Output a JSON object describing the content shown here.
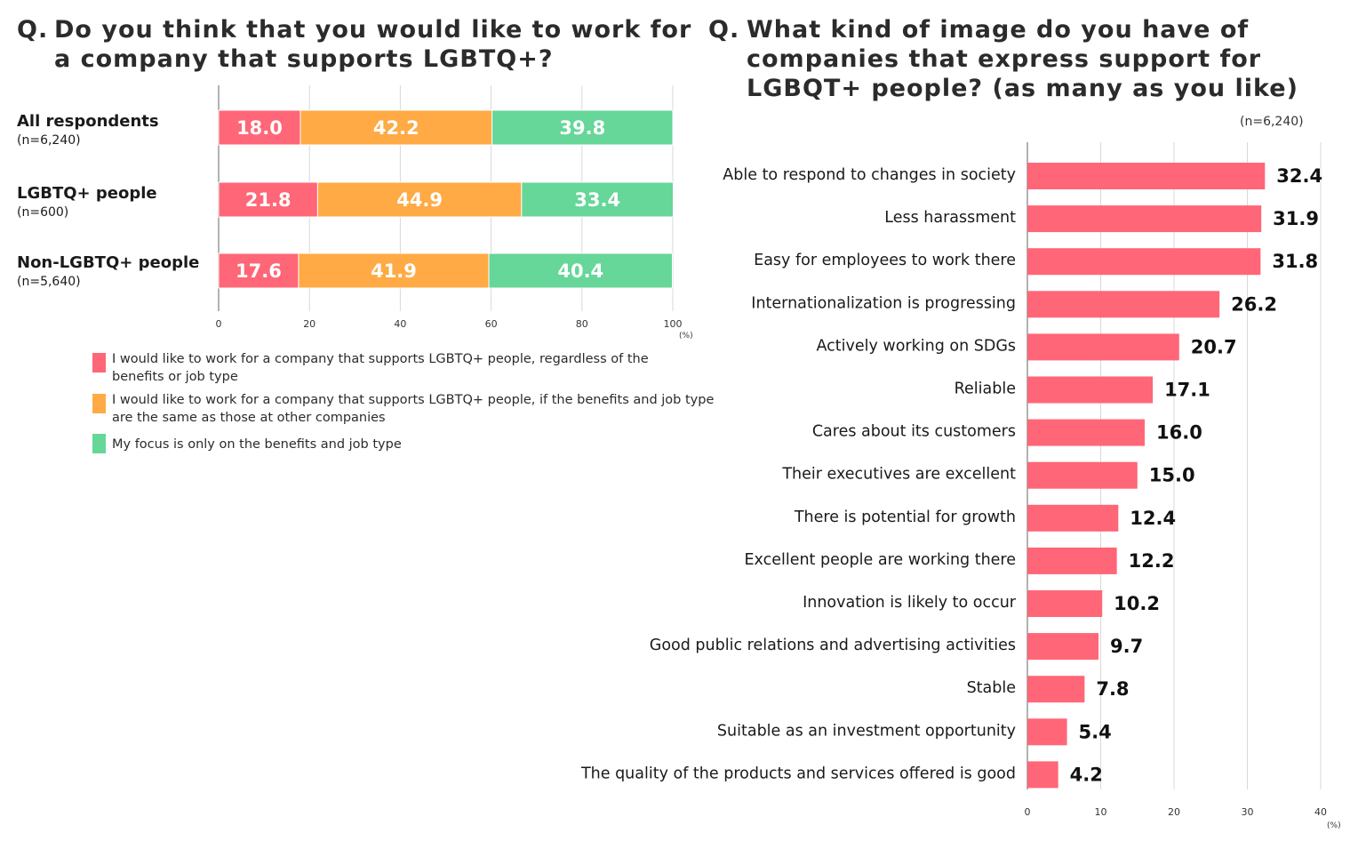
{
  "left": {
    "title_q": "Q.",
    "title_lines": [
      "Do you think that you would like to work for",
      "a company that supports LGBTQ+?"
    ],
    "colors": [
      "#ff6677",
      "#ffaa44",
      "#66d699"
    ],
    "axis_ticks": [
      "0",
      "20",
      "40",
      "60",
      "80",
      "100"
    ],
    "axis_unit": "(%)",
    "legend": [
      "I would like to work for a company that supports LGBTQ+ people, regardless of the benefits or job type",
      "I would like to work for a company that supports LGBTQ+ people, if the benefits and job type are the same as those at other companies",
      "My focus is only on the benefits and job type"
    ]
  },
  "right": {
    "title_q": "Q.",
    "title_lines": [
      "What kind of image do you have of",
      "companies that express support for",
      "LGBQT+ people? (as many as you like)"
    ],
    "n_note": "(n=6,240)",
    "bar_color": "#ff6677",
    "axis_ticks": [
      "0",
      "10",
      "20",
      "30",
      "40"
    ],
    "axis_unit": "(%)"
  },
  "chart_data": [
    {
      "type": "bar",
      "orientation": "horizontal",
      "stacked": true,
      "title": "Q. Do you think that you would like to work for a company that supports LGBTQ+?",
      "categories": [
        "All respondents",
        "LGBTQ+ people",
        "Non-LGBTQ+ people"
      ],
      "category_notes": [
        "(n=6,240)",
        "(n=600)",
        "(n=5,640)"
      ],
      "series": [
        {
          "name": "I would like to work for a company that supports LGBTQ+ people, regardless of the benefits or job type",
          "values": [
            18.0,
            21.8,
            17.6
          ],
          "labels": [
            "18.0",
            "21.8",
            "17.6"
          ]
        },
        {
          "name": "I would like to work for a company that supports LGBTQ+ people, if the benefits and job type are the same as those at other companies",
          "values": [
            42.2,
            44.9,
            41.9
          ],
          "labels": [
            "42.2",
            "44.9",
            "41.9"
          ]
        },
        {
          "name": "My focus is only on the benefits and job type",
          "values": [
            39.8,
            33.4,
            40.4
          ],
          "labels": [
            "39.8",
            "33.4",
            "40.4"
          ]
        }
      ],
      "xlim": [
        0,
        100
      ],
      "grid": true,
      "legend_position": "bottom"
    },
    {
      "type": "bar",
      "orientation": "horizontal",
      "title": "Q. What kind of image do you have of companies that express support for LGBQT+ people? (as many as you like)",
      "categories": [
        "Able to respond to changes in society",
        "Less harassment",
        "Easy for employees to work there",
        "Internationalization is progressing",
        "Actively working on SDGs",
        "Reliable",
        "Cares about its customers",
        "Their executives are excellent",
        "There is potential for growth",
        "Excellent people are working there",
        "Innovation is likely to occur",
        "Good public relations and advertising activities",
        "Stable",
        "Suitable as an investment opportunity",
        "The quality of the products and services offered is good"
      ],
      "values": [
        32.4,
        31.9,
        31.8,
        26.2,
        20.7,
        17.1,
        16.0,
        15.0,
        12.4,
        12.2,
        10.2,
        9.7,
        7.8,
        5.4,
        4.2
      ],
      "labels": [
        "32.4",
        "31.9",
        "31.8",
        "26.2",
        "20.7",
        "17.1",
        "16.0",
        "15.0",
        "12.4",
        "12.2",
        "10.2",
        "9.7",
        "7.8",
        "5.4",
        "4.2"
      ],
      "xlim": [
        0,
        40
      ],
      "grid": true
    }
  ]
}
